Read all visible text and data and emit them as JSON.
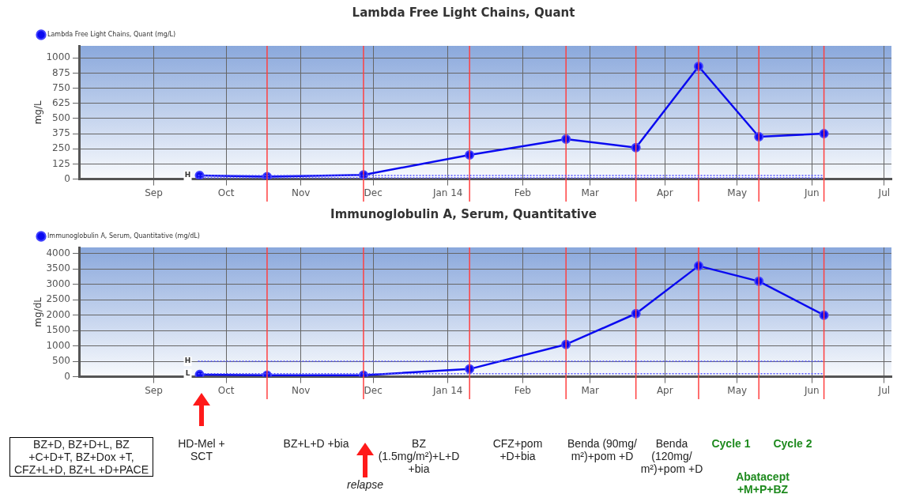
{
  "chart_data": [
    {
      "type": "line",
      "title": "Lambda Free Light Chains, Quant",
      "ylabel": "mg/L",
      "legend": "top left",
      "grid": true,
      "marker": "circle",
      "line_style": "solid",
      "x": [
        "2013-09-20",
        "2013-10-18",
        "2013-11-27",
        "2014-01-10",
        "2014-02-19",
        "2014-03-20",
        "2014-04-15",
        "2014-05-10",
        "2014-06-06"
      ],
      "series": [
        {
          "name": "Lambda Free Light Chains, Quant (mg/L)",
          "color": "#0a0af0",
          "values": [
            30,
            20,
            35,
            200,
            330,
            260,
            930,
            350,
            375
          ]
        }
      ],
      "xlim": [
        "2013-08-01",
        "2014-07-04"
      ],
      "xticks": [
        {
          "value": "2013-09-01",
          "label": "Sep"
        },
        {
          "value": "2013-10-01",
          "label": "Oct"
        },
        {
          "value": "2013-11-01",
          "label": "Nov"
        },
        {
          "value": "2013-12-01",
          "label": "Dec"
        },
        {
          "value": "2014-01-01",
          "label": "Jan 14"
        },
        {
          "value": "2014-02-01",
          "label": "Feb"
        },
        {
          "value": "2014-03-01",
          "label": "Mar"
        },
        {
          "value": "2014-04-01",
          "label": "Apr"
        },
        {
          "value": "2014-05-01",
          "label": "May"
        },
        {
          "value": "2014-06-01",
          "label": "Jun"
        },
        {
          "value": "2014-07-01",
          "label": "Jul"
        }
      ],
      "ylim": [
        0,
        1100
      ],
      "yticks": [
        0,
        125,
        250,
        375,
        500,
        625,
        750,
        875,
        1000
      ],
      "ref_lines": [
        {
          "axis": "x",
          "value": "2013-10-18",
          "color": "#ff4040"
        },
        {
          "axis": "x",
          "value": "2013-11-27",
          "color": "#ff4040"
        },
        {
          "axis": "x",
          "value": "2014-01-10",
          "color": "#ff4040"
        },
        {
          "axis": "x",
          "value": "2014-02-19",
          "color": "#ff4040"
        },
        {
          "axis": "x",
          "value": "2014-03-20",
          "color": "#ff4040"
        },
        {
          "axis": "x",
          "value": "2014-04-15",
          "color": "#ff4040"
        },
        {
          "axis": "x",
          "value": "2014-05-10",
          "color": "#ff4040"
        },
        {
          "axis": "x",
          "value": "2014-06-06",
          "color": "#ff4040"
        },
        {
          "axis": "y",
          "value": 30,
          "label": "H",
          "color": "#5555ff",
          "line_style": "dotted"
        },
        {
          "axis": "y",
          "value": 10,
          "color": "#5555ff",
          "line_style": "dotted"
        }
      ]
    },
    {
      "type": "line",
      "title": "Immunoglobulin A, Serum, Quantitative",
      "ylabel": "mg/dL",
      "legend": "top left",
      "grid": true,
      "marker": "circle",
      "line_style": "solid",
      "x": [
        "2013-09-20",
        "2013-10-18",
        "2013-11-27",
        "2014-01-10",
        "2014-02-19",
        "2014-03-20",
        "2014-04-15",
        "2014-05-10",
        "2014-06-06"
      ],
      "series": [
        {
          "name": "Immunoglobulin A, Serum, Quantitative (mg/dL)",
          "color": "#0a0af0",
          "values": [
            70,
            50,
            50,
            250,
            1050,
            2050,
            3600,
            3100,
            2000
          ]
        }
      ],
      "xlim": [
        "2013-08-01",
        "2014-07-04"
      ],
      "xticks": [
        {
          "value": "2013-09-01",
          "label": "Sep"
        },
        {
          "value": "2013-10-01",
          "label": "Oct"
        },
        {
          "value": "2013-11-01",
          "label": "Nov"
        },
        {
          "value": "2013-12-01",
          "label": "Dec"
        },
        {
          "value": "2014-01-01",
          "label": "Jan 14"
        },
        {
          "value": "2014-02-01",
          "label": "Feb"
        },
        {
          "value": "2014-03-01",
          "label": "Mar"
        },
        {
          "value": "2014-04-01",
          "label": "Apr"
        },
        {
          "value": "2014-05-01",
          "label": "May"
        },
        {
          "value": "2014-06-01",
          "label": "Jun"
        },
        {
          "value": "2014-07-01",
          "label": "Jul"
        }
      ],
      "ylim": [
        0,
        4200
      ],
      "yticks": [
        0,
        500,
        1000,
        1500,
        2000,
        2500,
        3000,
        3500,
        4000
      ],
      "ref_lines": [
        {
          "axis": "x",
          "value": "2013-10-18",
          "color": "#ff4040"
        },
        {
          "axis": "x",
          "value": "2013-11-27",
          "color": "#ff4040"
        },
        {
          "axis": "x",
          "value": "2014-01-10",
          "color": "#ff4040"
        },
        {
          "axis": "x",
          "value": "2014-02-19",
          "color": "#ff4040"
        },
        {
          "axis": "x",
          "value": "2014-03-20",
          "color": "#ff4040"
        },
        {
          "axis": "x",
          "value": "2014-04-15",
          "color": "#ff4040"
        },
        {
          "axis": "x",
          "value": "2014-05-10",
          "color": "#ff4040"
        },
        {
          "axis": "x",
          "value": "2014-06-06",
          "color": "#ff4040"
        },
        {
          "axis": "y",
          "value": 500,
          "label": "H",
          "color": "#5555ff",
          "line_style": "dotted"
        },
        {
          "axis": "y",
          "value": 100,
          "label": "L",
          "color": "#5555ff",
          "line_style": "dotted"
        }
      ],
      "annotations": [
        "BZ+D, BZ+D+L, BZ +C+D+T, BZ+Dox +T, CFZ+L+D, BZ+L +D+PACE",
        "HD-Mel + SCT",
        "BZ+L+D +bia",
        "relapse",
        "BZ (1.5mg/m²)+L+D +bia",
        "CFZ+pom +D+bia",
        "Benda (90mg/ m²)+pom +D",
        "Benda (120mg/ m²)+pom +D",
        "Cycle 1",
        "Cycle 2",
        "Abatacept +M+P+BZ"
      ]
    }
  ]
}
